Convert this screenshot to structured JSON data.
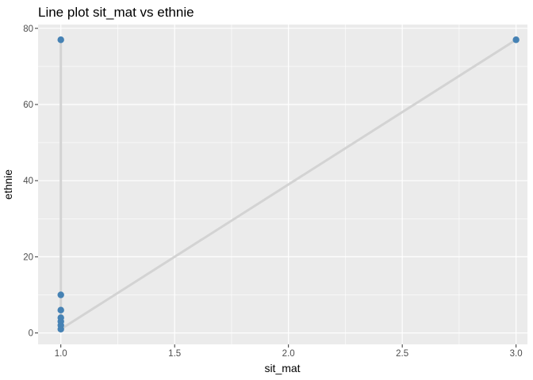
{
  "chart_data": {
    "type": "line",
    "title": "Line plot sit_mat vs ethnie",
    "xlabel": "sit_mat",
    "ylabel": "ethnie",
    "xlim": [
      0.9,
      3.05
    ],
    "ylim": [
      -3,
      81
    ],
    "x_ticks": [
      1.0,
      1.5,
      2.0,
      2.5,
      3.0
    ],
    "x_tick_labels": [
      "1.0",
      "1.5",
      "2.0",
      "2.5",
      "3.0"
    ],
    "y_ticks": [
      0,
      20,
      40,
      60,
      80
    ],
    "y_tick_labels": [
      "0",
      "20",
      "40",
      "60",
      "80"
    ],
    "grid": true,
    "legend": "none",
    "series": [
      {
        "x": [
          1,
          1,
          1,
          1,
          1,
          1,
          1,
          3
        ],
        "y": [
          77,
          10,
          6,
          4,
          3,
          2,
          1,
          77
        ]
      }
    ],
    "line_color": "#d3d3d3",
    "point_color": "#4682b4",
    "panel_color": "#ebebeb",
    "grid_color": "#ffffff"
  }
}
